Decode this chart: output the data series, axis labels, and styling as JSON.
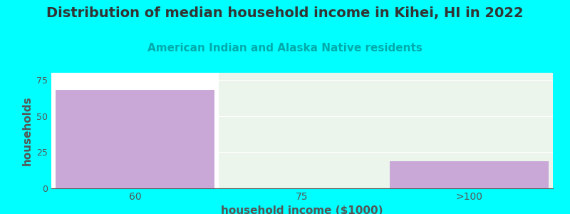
{
  "title": "Distribution of median household income in Kihei, HI in 2022",
  "subtitle": "American Indian and Alaska Native residents",
  "xlabel": "household income ($1000)",
  "ylabel": "households",
  "categories": [
    "60",
    "75",
    ">100"
  ],
  "values": [
    68,
    0,
    19
  ],
  "bar_color": "#C9A8D8",
  "bar_width": 0.95,
  "ylim": [
    0,
    80
  ],
  "yticks": [
    0,
    25,
    50,
    75
  ],
  "background_color": "#00FFFF",
  "plot_bg_left": "#FFFFFF",
  "plot_bg_right": "#EBF5EB",
  "title_fontsize": 14,
  "subtitle_fontsize": 11,
  "subtitle_color": "#00AAAA",
  "title_color": "#333333",
  "tick_color": "#555555",
  "ylabel_color": "#555555",
  "xlabel_color": "#555555",
  "xlabel_fontsize": 11,
  "ylabel_fontsize": 11
}
